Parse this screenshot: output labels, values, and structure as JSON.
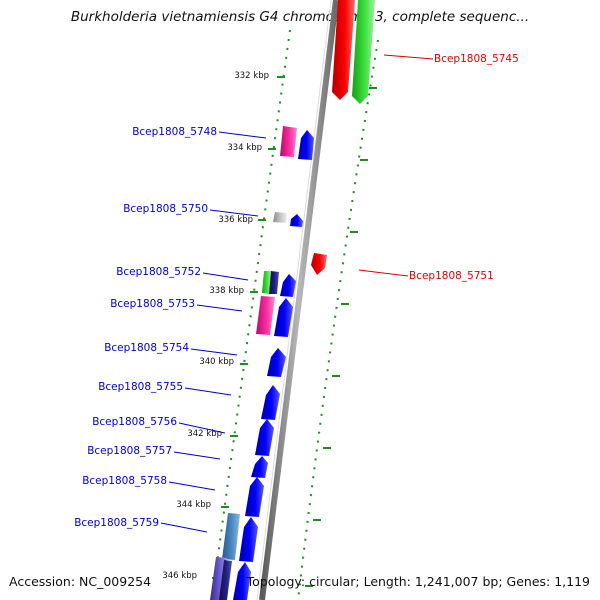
{
  "header": {
    "title": "Burkholderia vietnamiensis G4 chromosome 3, complete sequenc..."
  },
  "footer": {
    "accession": "Accession: NC_009254",
    "topology": "Topology: circular; Length: 1,241,007 bp; Genes: 1,119"
  },
  "colors": {
    "forward_label": "#0000cc",
    "reverse_label": "#dd0000",
    "tick_green": "#1e8c1e",
    "backbone": "#8c8c8c"
  },
  "scale": {
    "ticks": [
      "332 kbp",
      "334 kbp",
      "336 kbp",
      "338 kbp",
      "340 kbp",
      "342 kbp",
      "344 kbp",
      "346 kbp"
    ]
  },
  "genes": {
    "forward": [
      "Bcep1808_5748",
      "Bcep1808_5750",
      "Bcep1808_5752",
      "Bcep1808_5753",
      "Bcep1808_5754",
      "Bcep1808_5755",
      "Bcep1808_5756",
      "Bcep1808_5757",
      "Bcep1808_5758",
      "Bcep1808_5759"
    ],
    "reverse": [
      "Bcep1808_5745",
      "Bcep1808_5751"
    ]
  }
}
